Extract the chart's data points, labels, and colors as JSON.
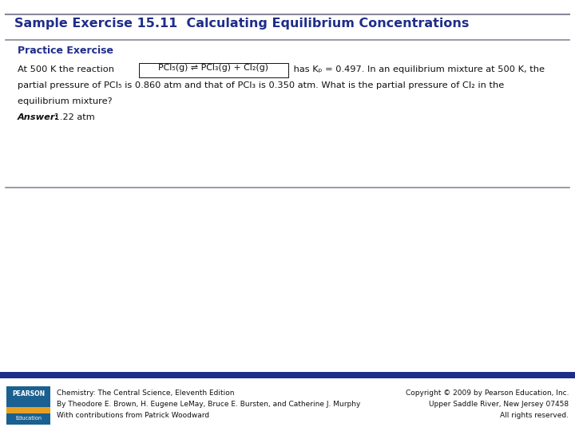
{
  "title": "Sample Exercise 15.11  Calculating Equilibrium Concentrations",
  "section_label": "Practice Exercise",
  "body_pre": "At 500 K the reaction ",
  "reaction_box": "PCl₅(g) ⇌ PCl₃(g) + Cl₂(g)",
  "body_post": " has Kₚ = 0.497. In an equilibrium mixture at 500 K, the",
  "body_line2": "partial pressure of PCl₅ is 0.860 atm and that of PCl₃ is 0.350 atm. What is the partial pressure of Cl₂ in the",
  "body_line3": "equilibrium mixture?",
  "answer_label": "Answer:",
  "answer_value": " 1.22 atm",
  "footer_left_line1": "Chemistry: The Central Science, Eleventh Edition",
  "footer_left_line2": "By Theodore E. Brown, H. Eugene LeMay, Bruce E. Bursten, and Catherine J. Murphy",
  "footer_left_line3": "With contributions from Patrick Woodward",
  "footer_right_line1": "Copyright © 2009 by Pearson Education, Inc.",
  "footer_right_line2": "Upper Saddle River, New Jersey 07458",
  "footer_right_line3": "All rights reserved.",
  "title_color": "#1f2d8a",
  "section_color": "#1f2d8a",
  "body_color": "#111111",
  "footer_color": "#111111",
  "bg_color": "#ffffff",
  "top_bar_color": "#888899",
  "bottom_bar_color": "#888899",
  "footer_bar_color": "#1f2d8a",
  "pearson_bg": "#1a6090",
  "pearson_accent": "#e8a020"
}
